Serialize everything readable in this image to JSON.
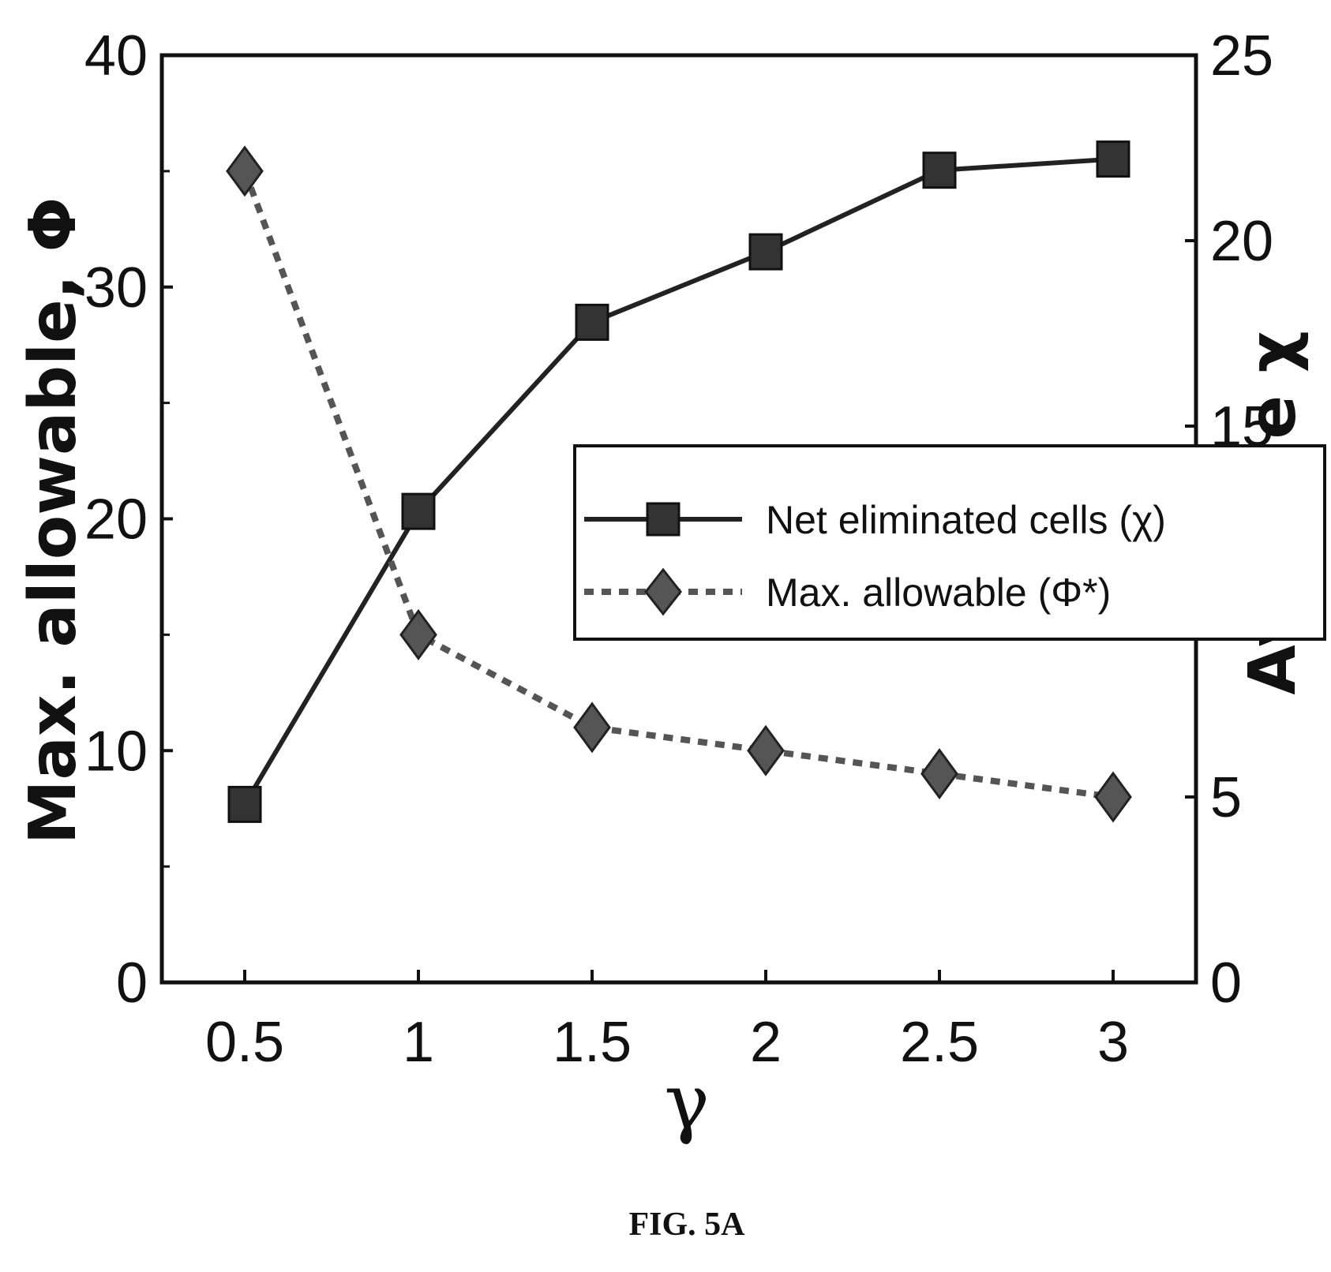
{
  "chart_data": {
    "type": "line",
    "x": [
      0.5,
      1,
      1.5,
      2,
      2.5,
      3
    ],
    "x_ticks": [
      "0.5",
      "1",
      "1.5",
      "2",
      "2.5",
      "3"
    ],
    "xlabel": "γ",
    "ylabel_left": "Max. allowable, Φ",
    "ylabel_right": "Average χ",
    "ylim_left": [
      0,
      40
    ],
    "ylim_right": [
      0,
      25
    ],
    "yticks_left": [
      "0",
      "10",
      "20",
      "30",
      "40"
    ],
    "yticks_right": [
      "0",
      "5",
      "10",
      "15",
      "20",
      "25"
    ],
    "grid": false,
    "legend_position": "center-right",
    "series": [
      {
        "name": "Net eliminated cells (χ)",
        "axis": "right",
        "values": [
          4.8,
          12.7,
          17.8,
          19.7,
          21.9,
          22.2
        ],
        "line_style": "solid",
        "marker": "square",
        "color": "#222222"
      },
      {
        "name": "Max. allowable (Φ*)",
        "axis": "left",
        "values": [
          35,
          15,
          11,
          10,
          9,
          8
        ],
        "line_style": "dotted",
        "marker": "diamond",
        "color": "#444444"
      }
    ]
  },
  "caption": "FIG. 5A"
}
